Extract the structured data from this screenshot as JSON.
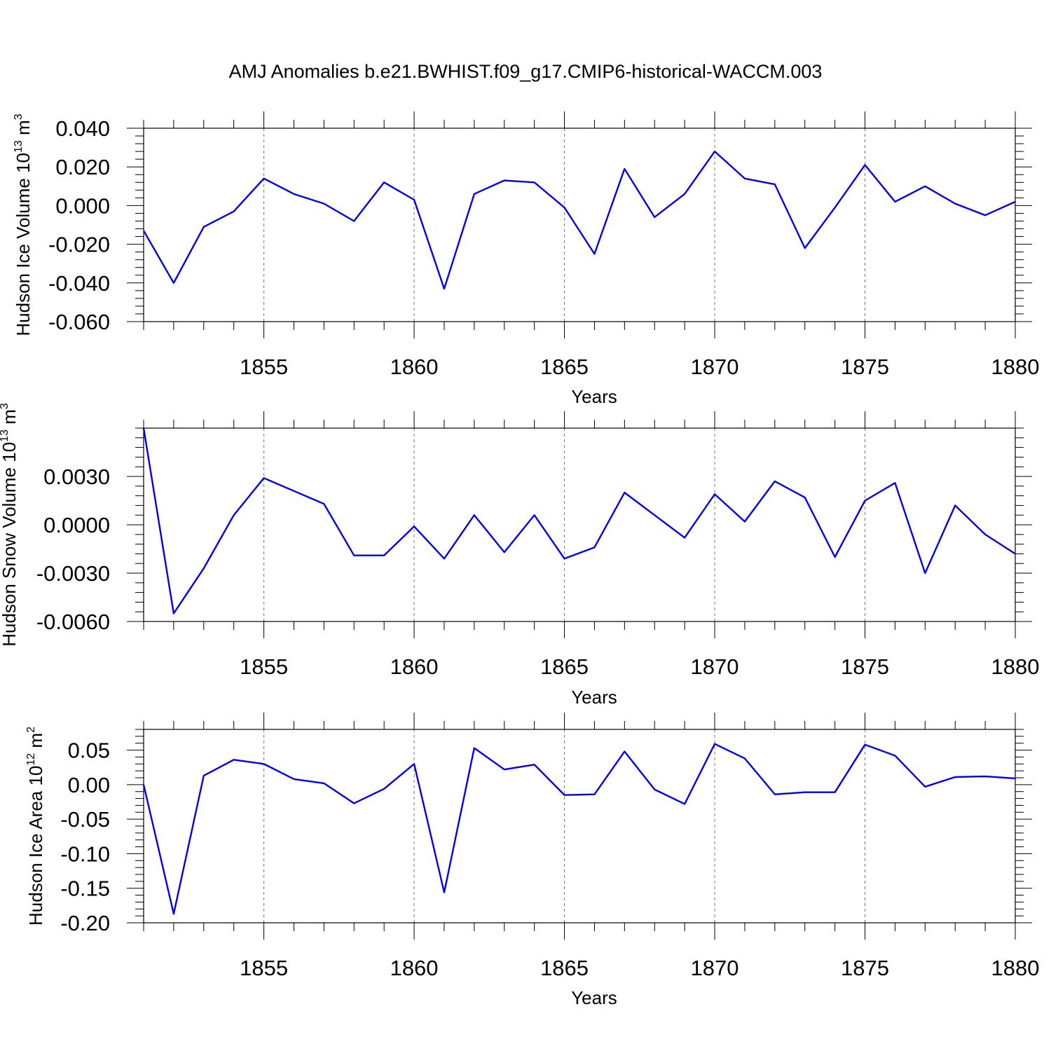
{
  "title": "AMJ Anomalies b.e21.BWHIST.f09_g17.CMIP6-historical-WACCM.003",
  "line_color": "#0000ee",
  "chart_data": [
    {
      "type": "line",
      "xlabel": "Years",
      "ylabel": {
        "text": "Hudson Ice Volume 10",
        "sup": "13",
        "unit": " m",
        "unit_sup": "3"
      },
      "xlim": [
        1851,
        1880
      ],
      "ylim": [
        -0.06,
        0.04
      ],
      "xticks": [
        1855,
        1860,
        1865,
        1870,
        1875,
        1880
      ],
      "yticks": [
        -0.06,
        -0.04,
        -0.02,
        0.0,
        0.02,
        0.04
      ],
      "ytick_labels": [
        "-0.060",
        "-0.040",
        "-0.020",
        "0.000",
        "0.020",
        "0.040"
      ],
      "x": [
        1851,
        1852,
        1853,
        1854,
        1855,
        1856,
        1857,
        1858,
        1859,
        1860,
        1861,
        1862,
        1863,
        1864,
        1865,
        1866,
        1867,
        1868,
        1869,
        1870,
        1871,
        1872,
        1873,
        1874,
        1875,
        1876,
        1877,
        1878,
        1879,
        1880
      ],
      "values": [
        -0.013,
        -0.04,
        -0.011,
        -0.003,
        0.014,
        0.006,
        0.001,
        -0.008,
        0.012,
        0.003,
        -0.043,
        0.006,
        0.013,
        0.012,
        -0.001,
        -0.025,
        0.019,
        -0.006,
        0.006,
        0.028,
        0.014,
        0.011,
        -0.022,
        -0.001,
        0.021,
        0.002,
        0.01,
        0.001,
        -0.005,
        0.002
      ]
    },
    {
      "type": "line",
      "xlabel": "Years",
      "ylabel": {
        "text": "Hudson Snow Volume 10",
        "sup": "13",
        "unit": " m",
        "unit_sup": "3"
      },
      "xlim": [
        1851,
        1880
      ],
      "ylim": [
        -0.006,
        0.006
      ],
      "xticks": [
        1855,
        1860,
        1865,
        1870,
        1875,
        1880
      ],
      "yticks": [
        -0.006,
        -0.003,
        0.0,
        0.003
      ],
      "ytick_labels": [
        "-0.0060",
        "-0.0030",
        "0.0000",
        "0.0030"
      ],
      "x": [
        1851,
        1852,
        1853,
        1854,
        1855,
        1856,
        1857,
        1858,
        1859,
        1860,
        1861,
        1862,
        1863,
        1864,
        1865,
        1866,
        1867,
        1868,
        1869,
        1870,
        1871,
        1872,
        1873,
        1874,
        1875,
        1876,
        1877,
        1878,
        1879,
        1880
      ],
      "values": [
        0.006,
        -0.0055,
        -0.0027,
        0.0006,
        0.0029,
        0.0021,
        0.0013,
        -0.0019,
        -0.0019,
        -0.0001,
        -0.0021,
        0.0006,
        -0.0017,
        0.0006,
        -0.0021,
        -0.0014,
        0.002,
        0.0006,
        -0.0008,
        0.0019,
        0.0002,
        0.0027,
        0.0017,
        -0.002,
        0.0015,
        0.0026,
        -0.003,
        0.0012,
        -0.0006,
        -0.0018
      ]
    },
    {
      "type": "line",
      "xlabel": "Years",
      "ylabel": {
        "text": "Hudson Ice Area 10",
        "sup": "12",
        "unit": " m",
        "unit_sup": "2"
      },
      "xlim": [
        1851,
        1880
      ],
      "ylim": [
        -0.2,
        0.08
      ],
      "xticks": [
        1855,
        1860,
        1865,
        1870,
        1875,
        1880
      ],
      "yticks": [
        -0.2,
        -0.15,
        -0.1,
        -0.05,
        0.0,
        0.05
      ],
      "ytick_labels": [
        "-0.20",
        "-0.15",
        "-0.10",
        "-0.05",
        "0.00",
        "0.05"
      ],
      "x": [
        1851,
        1852,
        1853,
        1854,
        1855,
        1856,
        1857,
        1858,
        1859,
        1860,
        1861,
        1862,
        1863,
        1864,
        1865,
        1866,
        1867,
        1868,
        1869,
        1870,
        1871,
        1872,
        1873,
        1874,
        1875,
        1876,
        1877,
        1878,
        1879,
        1880
      ],
      "values": [
        0.0,
        -0.187,
        0.013,
        0.036,
        0.03,
        0.008,
        0.002,
        -0.027,
        -0.006,
        0.03,
        -0.156,
        0.053,
        0.022,
        0.029,
        -0.015,
        -0.014,
        0.048,
        -0.007,
        -0.028,
        0.059,
        0.038,
        -0.014,
        -0.011,
        -0.011,
        0.058,
        0.042,
        -0.003,
        0.011,
        0.012,
        0.009
      ]
    }
  ]
}
